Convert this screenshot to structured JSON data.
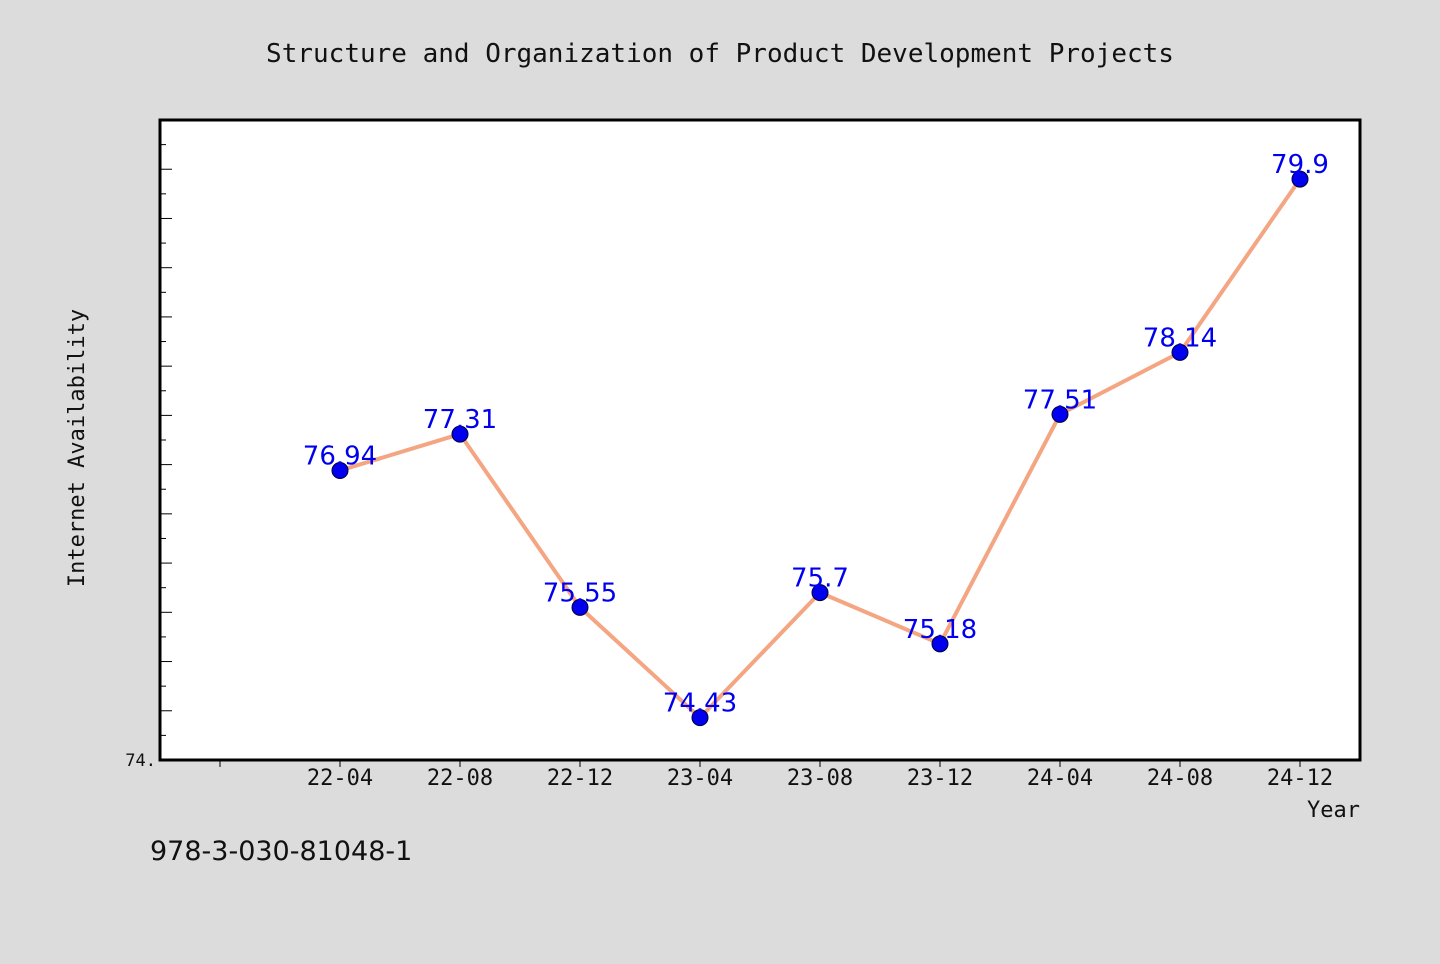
{
  "chart_data": {
    "type": "line",
    "title": "Structure and Organization of Product Development Projects",
    "xlabel": "Year",
    "ylabel": "Internet Availability",
    "categories": [
      "22-04",
      "22-08",
      "22-12",
      "23-04",
      "23-08",
      "23-12",
      "24-04",
      "24-08",
      "24-12"
    ],
    "series": [
      {
        "values": [
          76.94,
          77.31,
          75.55,
          74.43,
          75.7,
          75.18,
          77.51,
          78.14,
          79.9
        ],
        "labels": [
          "76.94",
          "77.31",
          "75.55",
          "74.43",
          "75.7",
          "75.18",
          "77.51",
          "78.14",
          "79.9"
        ],
        "line_color": "#f4a582",
        "marker_color": "#0000ee"
      }
    ],
    "ylim": [
      74.0,
      80.5
    ],
    "y_tick_labels": [
      {
        "value": 74.0,
        "label": "74."
      }
    ],
    "grid": false,
    "legend": "none"
  },
  "footer": {
    "isbn": "978-3-030-81048-1"
  },
  "colors": {
    "background": "#dcdcdc",
    "plot_background": "#ffffff",
    "axis": "#000000",
    "label_text": "#0000ee"
  }
}
